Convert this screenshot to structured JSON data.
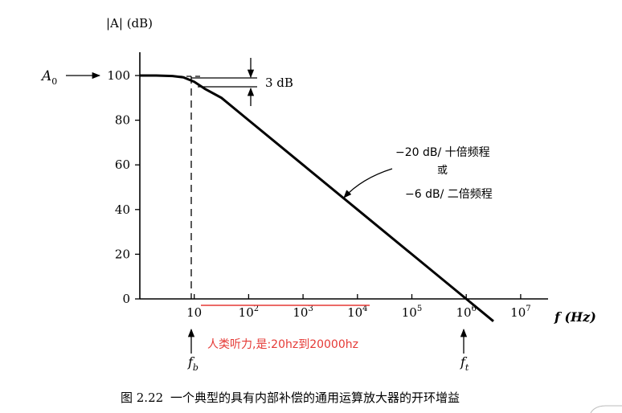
{
  "chart_data": {
    "type": "line",
    "title": "",
    "ylabel": "|A| (dB)",
    "xlabel": "f (Hz)",
    "x_scale": "log",
    "xlim_decades": [
      0,
      7
    ],
    "ylim": [
      0,
      100
    ],
    "y_ticks": [
      0,
      20,
      40,
      60,
      80,
      100
    ],
    "x_ticks": [
      {
        "base": "10",
        "exp": ""
      },
      {
        "base": "10",
        "exp": "2"
      },
      {
        "base": "10",
        "exp": "3"
      },
      {
        "base": "10",
        "exp": "4"
      },
      {
        "base": "10",
        "exp": "5"
      },
      {
        "base": "10",
        "exp": "6"
      },
      {
        "base": "10",
        "exp": "7"
      }
    ],
    "series": [
      {
        "x_log10": [
          0,
          0.3,
          0.6,
          0.8,
          1.0,
          1.2,
          1.5,
          2,
          3,
          4,
          5,
          6,
          6.5
        ],
        "values": [
          100,
          100,
          99.8,
          99.2,
          97.2,
          94,
          90,
          80,
          60,
          40,
          20,
          0,
          -10
        ]
      }
    ],
    "annotations": {
      "a0": "A",
      "a0_sub": "0",
      "db3": "3 dB",
      "slope_line1": "−20 dB/ 十倍频程",
      "slope_or": "或",
      "slope_line2": "−6 dB/ 二倍频程",
      "fb": "f",
      "fb_sub": "b",
      "ft": "f",
      "ft_sub": "t",
      "hearing_note": "人类听力,是:20hz到20000hz"
    },
    "colors": {
      "curve": "#000000",
      "note": "#e53935"
    }
  },
  "caption": {
    "figure_no": "图 2.22",
    "text": "一个典型的具有内部补偿的通用运算放大器的开环增益"
  }
}
